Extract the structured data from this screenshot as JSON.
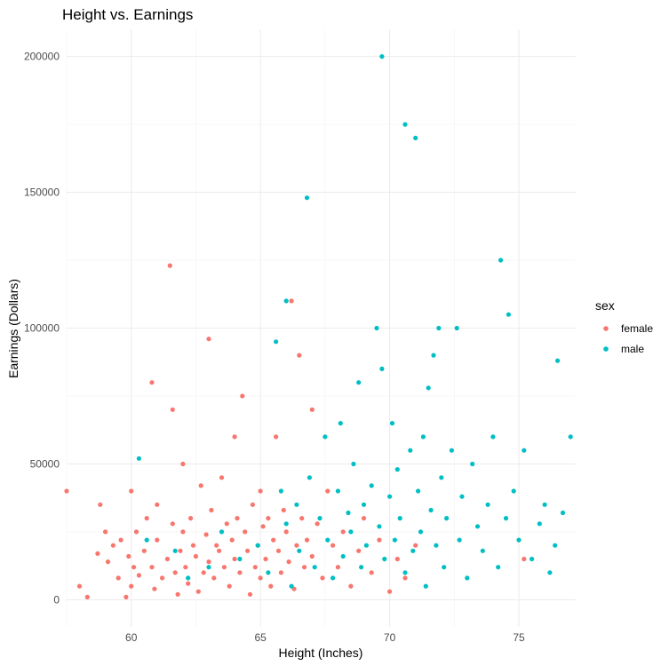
{
  "chart_data": {
    "type": "scatter",
    "title": "Height vs. Earnings",
    "xlabel": "Height (Inches)",
    "ylabel": "Earnings (Dollars)",
    "xlim": [
      57.5,
      77.2
    ],
    "ylim": [
      -10000,
      210000
    ],
    "x_ticks": [
      60,
      65,
      70,
      75
    ],
    "y_ticks": [
      0,
      50000,
      100000,
      150000,
      200000
    ],
    "grid": true,
    "legend": {
      "title": "sex",
      "position": "right"
    },
    "series": [
      {
        "name": "female",
        "color": "#F8766D",
        "points": [
          [
            57.5,
            40000
          ],
          [
            58.0,
            5000
          ],
          [
            58.3,
            1000
          ],
          [
            58.7,
            17000
          ],
          [
            58.8,
            35000
          ],
          [
            59.0,
            25000
          ],
          [
            59.1,
            14000
          ],
          [
            59.3,
            20000
          ],
          [
            59.5,
            8000
          ],
          [
            59.6,
            22000
          ],
          [
            59.8,
            1000
          ],
          [
            59.9,
            16000
          ],
          [
            60.0,
            5000
          ],
          [
            60.0,
            40000
          ],
          [
            60.1,
            12000
          ],
          [
            60.2,
            25000
          ],
          [
            60.3,
            9000
          ],
          [
            60.5,
            18000
          ],
          [
            60.6,
            30000
          ],
          [
            60.8,
            80000
          ],
          [
            60.8,
            12000
          ],
          [
            60.9,
            4000
          ],
          [
            61.0,
            35000
          ],
          [
            61.0,
            22000
          ],
          [
            61.2,
            8000
          ],
          [
            61.4,
            15000
          ],
          [
            61.5,
            123000
          ],
          [
            61.6,
            70000
          ],
          [
            61.6,
            28000
          ],
          [
            61.7,
            10000
          ],
          [
            61.8,
            2000
          ],
          [
            61.9,
            18000
          ],
          [
            62.0,
            50000
          ],
          [
            62.0,
            25000
          ],
          [
            62.1,
            12000
          ],
          [
            62.2,
            6000
          ],
          [
            62.3,
            30000
          ],
          [
            62.4,
            20000
          ],
          [
            62.5,
            16000
          ],
          [
            62.6,
            3000
          ],
          [
            62.7,
            42000
          ],
          [
            62.8,
            10000
          ],
          [
            62.9,
            24000
          ],
          [
            63.0,
            96000
          ],
          [
            63.0,
            14000
          ],
          [
            63.1,
            33000
          ],
          [
            63.2,
            8000
          ],
          [
            63.3,
            20000
          ],
          [
            63.4,
            18000
          ],
          [
            63.5,
            45000
          ],
          [
            63.6,
            12000
          ],
          [
            63.7,
            28000
          ],
          [
            63.8,
            5000
          ],
          [
            63.9,
            22000
          ],
          [
            64.0,
            60000
          ],
          [
            64.0,
            15000
          ],
          [
            64.1,
            30000
          ],
          [
            64.2,
            10000
          ],
          [
            64.3,
            75000
          ],
          [
            64.4,
            25000
          ],
          [
            64.5,
            18000
          ],
          [
            64.6,
            2000
          ],
          [
            64.7,
            35000
          ],
          [
            64.8,
            12000
          ],
          [
            64.9,
            20000
          ],
          [
            65.0,
            40000
          ],
          [
            65.0,
            8000
          ],
          [
            65.1,
            27000
          ],
          [
            65.2,
            15000
          ],
          [
            65.3,
            30000
          ],
          [
            65.4,
            5000
          ],
          [
            65.5,
            22000
          ],
          [
            65.6,
            60000
          ],
          [
            65.7,
            18000
          ],
          [
            65.8,
            10000
          ],
          [
            65.9,
            33000
          ],
          [
            66.0,
            25000
          ],
          [
            66.1,
            14000
          ],
          [
            66.2,
            110000
          ],
          [
            66.3,
            4000
          ],
          [
            66.4,
            20000
          ],
          [
            66.5,
            90000
          ],
          [
            66.6,
            30000
          ],
          [
            66.7,
            12000
          ],
          [
            66.8,
            22000
          ],
          [
            67.0,
            70000
          ],
          [
            67.0,
            16000
          ],
          [
            67.2,
            28000
          ],
          [
            67.4,
            8000
          ],
          [
            67.6,
            40000
          ],
          [
            67.8,
            20000
          ],
          [
            68.0,
            12000
          ],
          [
            68.2,
            25000
          ],
          [
            68.5,
            5000
          ],
          [
            68.8,
            18000
          ],
          [
            69.0,
            30000
          ],
          [
            69.3,
            10000
          ],
          [
            69.6,
            22000
          ],
          [
            70.0,
            3000
          ],
          [
            70.3,
            15000
          ],
          [
            70.6,
            8000
          ],
          [
            71.0,
            20000
          ],
          [
            75.2,
            15000
          ]
        ]
      },
      {
        "name": "male",
        "color": "#00BFC4",
        "points": [
          [
            60.3,
            52000
          ],
          [
            60.6,
            22000
          ],
          [
            61.7,
            18000
          ],
          [
            62.2,
            8000
          ],
          [
            63.0,
            12000
          ],
          [
            63.5,
            25000
          ],
          [
            64.2,
            15000
          ],
          [
            64.9,
            20000
          ],
          [
            65.3,
            10000
          ],
          [
            65.6,
            95000
          ],
          [
            65.8,
            40000
          ],
          [
            66.0,
            110000
          ],
          [
            66.0,
            28000
          ],
          [
            66.2,
            5000
          ],
          [
            66.4,
            35000
          ],
          [
            66.5,
            18000
          ],
          [
            66.8,
            148000
          ],
          [
            66.9,
            45000
          ],
          [
            67.1,
            12000
          ],
          [
            67.3,
            30000
          ],
          [
            67.5,
            60000
          ],
          [
            67.6,
            22000
          ],
          [
            67.8,
            8000
          ],
          [
            68.0,
            40000
          ],
          [
            68.1,
            65000
          ],
          [
            68.2,
            16000
          ],
          [
            68.4,
            32000
          ],
          [
            68.5,
            25000
          ],
          [
            68.6,
            50000
          ],
          [
            68.8,
            80000
          ],
          [
            68.9,
            12000
          ],
          [
            69.0,
            35000
          ],
          [
            69.1,
            20000
          ],
          [
            69.3,
            42000
          ],
          [
            69.5,
            100000
          ],
          [
            69.6,
            27000
          ],
          [
            69.7,
            200000
          ],
          [
            69.7,
            85000
          ],
          [
            69.8,
            15000
          ],
          [
            70.0,
            38000
          ],
          [
            70.1,
            65000
          ],
          [
            70.2,
            22000
          ],
          [
            70.3,
            48000
          ],
          [
            70.4,
            30000
          ],
          [
            70.6,
            10000
          ],
          [
            70.6,
            175000
          ],
          [
            70.8,
            55000
          ],
          [
            70.9,
            18000
          ],
          [
            71.0,
            170000
          ],
          [
            71.1,
            40000
          ],
          [
            71.2,
            25000
          ],
          [
            71.3,
            60000
          ],
          [
            71.4,
            5000
          ],
          [
            71.5,
            78000
          ],
          [
            71.6,
            33000
          ],
          [
            71.7,
            90000
          ],
          [
            71.8,
            20000
          ],
          [
            71.9,
            100000
          ],
          [
            72.0,
            45000
          ],
          [
            72.1,
            12000
          ],
          [
            72.2,
            30000
          ],
          [
            72.4,
            55000
          ],
          [
            72.6,
            100000
          ],
          [
            72.7,
            22000
          ],
          [
            72.8,
            38000
          ],
          [
            73.0,
            8000
          ],
          [
            73.2,
            50000
          ],
          [
            73.4,
            27000
          ],
          [
            73.6,
            18000
          ],
          [
            73.8,
            35000
          ],
          [
            74.0,
            60000
          ],
          [
            74.2,
            12000
          ],
          [
            74.3,
            125000
          ],
          [
            74.5,
            30000
          ],
          [
            74.6,
            105000
          ],
          [
            74.8,
            40000
          ],
          [
            75.0,
            22000
          ],
          [
            75.2,
            55000
          ],
          [
            75.5,
            15000
          ],
          [
            75.8,
            28000
          ],
          [
            76.0,
            35000
          ],
          [
            76.2,
            10000
          ],
          [
            76.4,
            20000
          ],
          [
            76.5,
            88000
          ],
          [
            76.7,
            32000
          ],
          [
            77.0,
            60000
          ]
        ]
      }
    ]
  }
}
